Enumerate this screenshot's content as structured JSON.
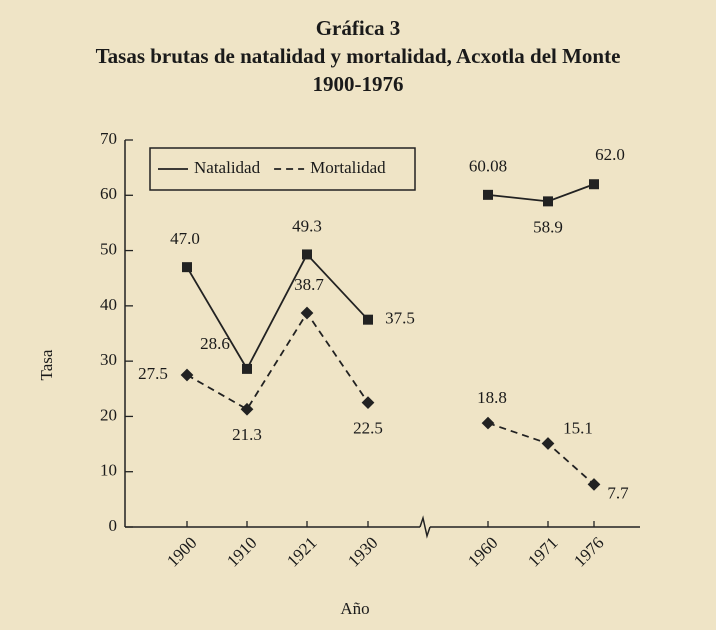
{
  "chart_data": {
    "type": "line",
    "title": "Gráfica 3",
    "subtitle": "Tasas brutas de natalidad y mortalidad, Acxotla del Monte",
    "subtitle2": "1900-1976",
    "xlabel": "Año",
    "ylabel": "Tasa",
    "categories": [
      "1900",
      "1910",
      "1921",
      "1930",
      "1960",
      "1971",
      "1976"
    ],
    "series": [
      {
        "name": "Natalidad",
        "color": "#222222",
        "dash": "solid",
        "marker": "square",
        "values": [
          47.0,
          28.6,
          49.3,
          37.5,
          60.08,
          58.9,
          62.0
        ],
        "value_labels": [
          "47.0",
          "28.6",
          "49.3",
          "37.5",
          "60.08",
          "58.9",
          "62.0"
        ]
      },
      {
        "name": "Mortalidad",
        "color": "#222222",
        "dash": "dashed",
        "marker": "diamond",
        "values": [
          27.5,
          21.3,
          38.7,
          22.5,
          18.8,
          15.1,
          7.7
        ],
        "value_labels": [
          "27.5",
          "21.3",
          "38.7",
          "22.5",
          "18.8",
          "15.1",
          "7.7"
        ]
      }
    ],
    "ylim": [
      0,
      70
    ],
    "yticks": [
      0,
      10,
      20,
      30,
      40,
      50,
      60,
      70
    ],
    "axis_break": true,
    "legend": "upper left",
    "grid": false
  }
}
